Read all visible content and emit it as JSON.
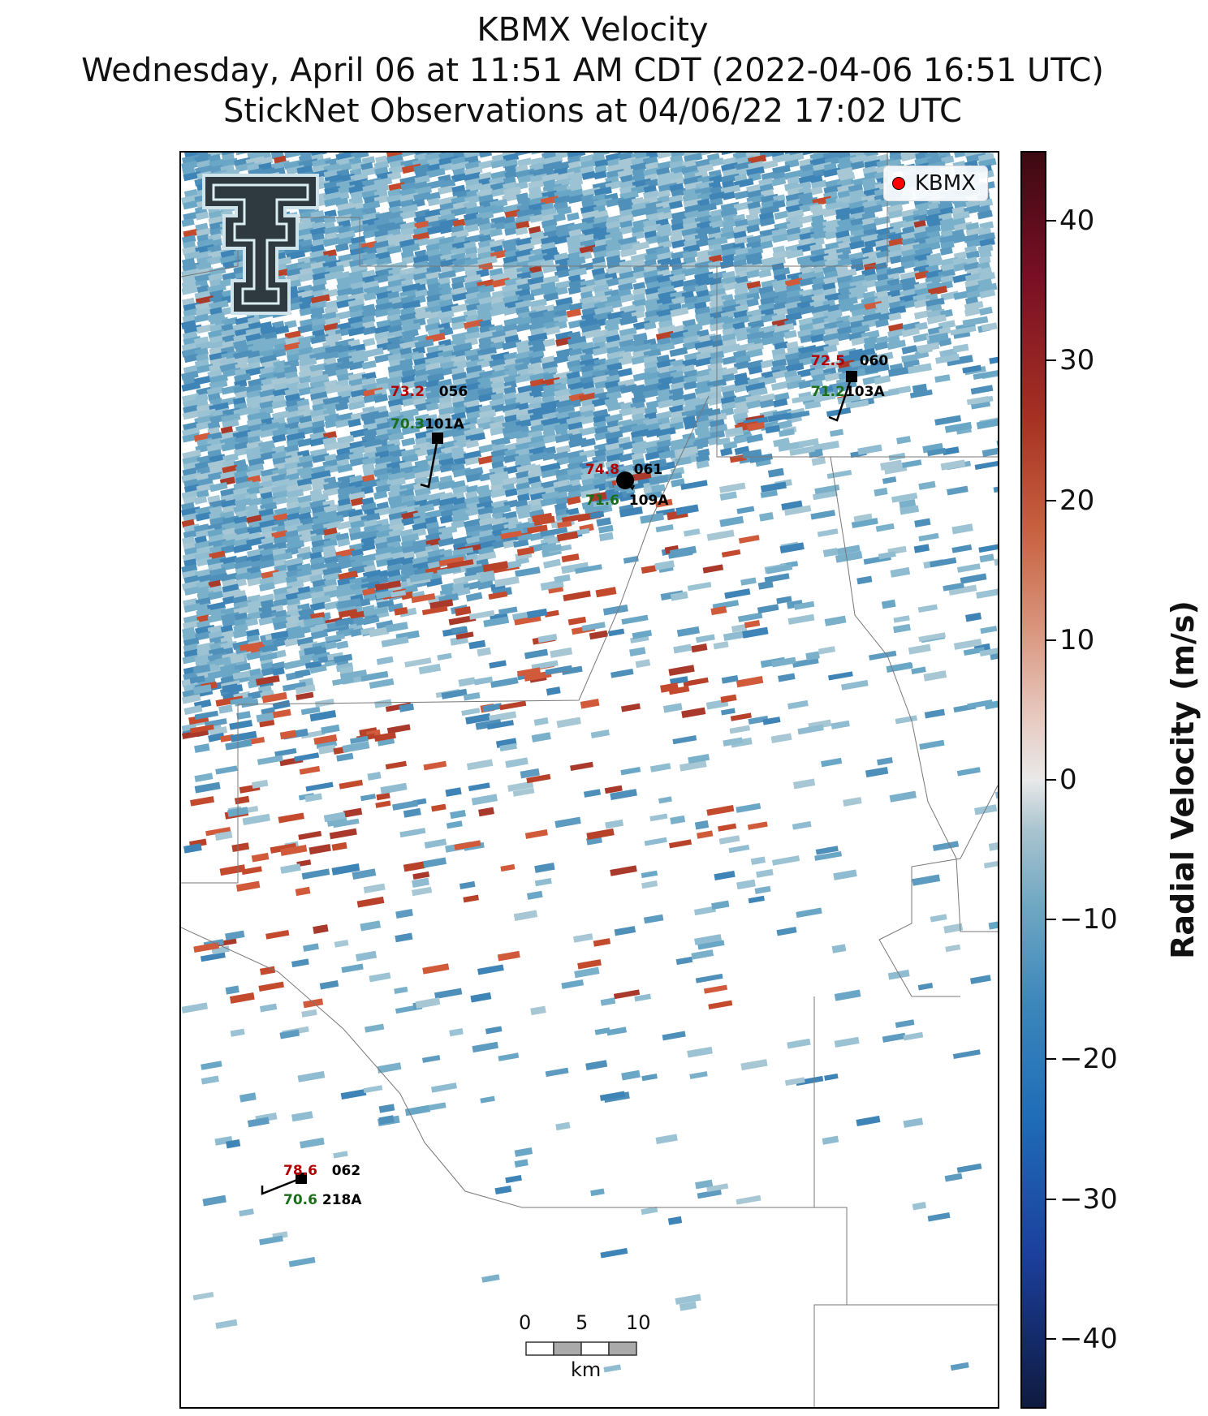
{
  "title": {
    "line1": "KBMX Velocity",
    "line2": "Wednesday, April 06 at 11:51 AM CDT (2022-04-06 16:51 UTC)",
    "line3": "StickNet Observations at 04/06/22 17:02 UTC"
  },
  "legend": {
    "label": "KBMX",
    "marker_color": "#ff0000"
  },
  "stations": [
    {
      "temp": "73.2",
      "dew": "70.3",
      "id_top": "056",
      "id_bottom": "101A"
    },
    {
      "temp": "74.8",
      "dew": "71.6",
      "id_top": "061",
      "id_bottom": "109A"
    },
    {
      "temp": "72.5",
      "dew": "71.2",
      "id_top": "060",
      "id_bottom": "103A"
    },
    {
      "temp": "78.6",
      "dew": "70.6",
      "id_top": "062",
      "id_bottom": "218A"
    }
  ],
  "scale_bar": {
    "ticks": [
      "0",
      "5",
      "10"
    ],
    "unit": "km"
  },
  "colorbar": {
    "label": "Radial Velocity (m/s)",
    "ticks": [
      "40",
      "30",
      "20",
      "10",
      "0",
      "−10",
      "−20",
      "−30",
      "−40"
    ],
    "range": [
      -45,
      45
    ]
  },
  "colors": {
    "inbound": "#4a8fba",
    "outbound": "#c44a2e",
    "background_echo": "#8fb4c8"
  }
}
